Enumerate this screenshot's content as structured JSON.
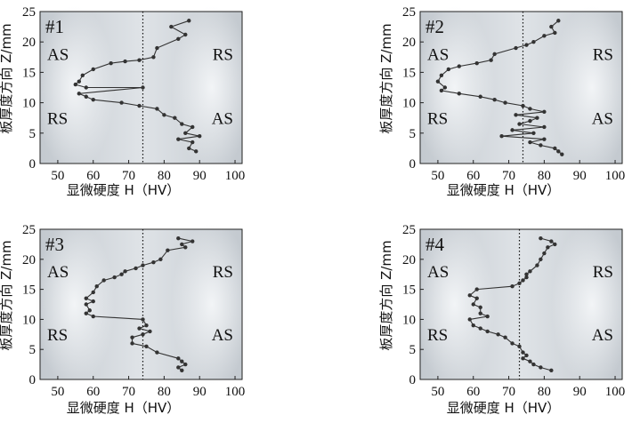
{
  "chart_data": [
    {
      "type": "line",
      "panel": "#1",
      "xlabel": "显微硬度 H（HV）",
      "ylabel": "板厚度方向 Z/mm",
      "xlim": [
        45,
        102
      ],
      "ylim": [
        0,
        25
      ],
      "xticks": [
        50,
        60,
        70,
        80,
        90,
        100
      ],
      "yticks": [
        0,
        5,
        10,
        15,
        20,
        25
      ],
      "reference_x": 74,
      "regions": {
        "top_left": "AS",
        "top_right": "RS",
        "bottom_left": "RS",
        "bottom_right": "AS"
      },
      "series": [
        {
          "points": [
            [
              87,
              23.5
            ],
            [
              82,
              22.5
            ],
            [
              86,
              21.2
            ],
            [
              84,
              20.5
            ],
            [
              78,
              19
            ],
            [
              77,
              17.5
            ],
            [
              73,
              17
            ],
            [
              69,
              16.8
            ],
            [
              65,
              16.5
            ],
            [
              60,
              15.5
            ],
            [
              57,
              14.5
            ],
            [
              56,
              13.5
            ],
            [
              55,
              13
            ],
            [
              58,
              12.5
            ],
            [
              74,
              12.5
            ],
            [
              56,
              11.5
            ],
            [
              58,
              11
            ],
            [
              60,
              10.5
            ],
            [
              68,
              10
            ],
            [
              73,
              9.5
            ],
            [
              78,
              9
            ],
            [
              80,
              8
            ],
            [
              83,
              7.5
            ],
            [
              85,
              6.5
            ],
            [
              88,
              6
            ],
            [
              86,
              5
            ],
            [
              90,
              4.5
            ],
            [
              84,
              4
            ],
            [
              88,
              3.5
            ],
            [
              87,
              2.5
            ],
            [
              89,
              2
            ]
          ]
        }
      ]
    },
    {
      "type": "line",
      "panel": "#2",
      "xlabel": "显微硬度 H（HV）",
      "ylabel": "板厚度方向 Z/mm",
      "xlim": [
        45,
        102
      ],
      "ylim": [
        0,
        25
      ],
      "xticks": [
        50,
        60,
        70,
        80,
        90,
        100
      ],
      "yticks": [
        0,
        5,
        10,
        15,
        20,
        25
      ],
      "reference_x": 74,
      "regions": {
        "top_left": "AS",
        "top_right": "RS",
        "bottom_left": "RS",
        "bottom_right": "AS"
      },
      "series": [
        {
          "points": [
            [
              84,
              23.5
            ],
            [
              82,
              22.5
            ],
            [
              83,
              21.5
            ],
            [
              80,
              21
            ],
            [
              77,
              20
            ],
            [
              75,
              19.5
            ],
            [
              72,
              19
            ],
            [
              66,
              18
            ],
            [
              65,
              17
            ],
            [
              61,
              16.5
            ],
            [
              56,
              16
            ],
            [
              53,
              15.5
            ],
            [
              51,
              14.5
            ],
            [
              50,
              13.5
            ],
            [
              52,
              12.5
            ],
            [
              51,
              12
            ],
            [
              56,
              11.5
            ],
            [
              62,
              11
            ],
            [
              66,
              10.5
            ],
            [
              69,
              10
            ],
            [
              74,
              9.5
            ],
            [
              76,
              9
            ],
            [
              80,
              8.5
            ],
            [
              72,
              8
            ],
            [
              78,
              7.5
            ],
            [
              76,
              7
            ],
            [
              73,
              6.5
            ],
            [
              80,
              6
            ],
            [
              71,
              5.5
            ],
            [
              77,
              5
            ],
            [
              68,
              4.5
            ],
            [
              80,
              4
            ],
            [
              76,
              3.5
            ],
            [
              79,
              3
            ],
            [
              83,
              2.5
            ],
            [
              84,
              2
            ],
            [
              85,
              1.5
            ]
          ]
        }
      ]
    },
    {
      "type": "line",
      "panel": "#3",
      "xlabel": "显微硬度 H（HV）",
      "ylabel": "板厚度方向 Z/mm",
      "xlim": [
        45,
        102
      ],
      "ylim": [
        0,
        25
      ],
      "xticks": [
        50,
        60,
        70,
        80,
        90,
        100
      ],
      "yticks": [
        0,
        5,
        10,
        15,
        20,
        25
      ],
      "reference_x": 74,
      "regions": {
        "top_left": "AS",
        "top_right": "RS",
        "bottom_left": "RS",
        "bottom_right": "AS"
      },
      "series": [
        {
          "points": [
            [
              84,
              23.5
            ],
            [
              88,
              23
            ],
            [
              85,
              22.5
            ],
            [
              86,
              22
            ],
            [
              81,
              21.5
            ],
            [
              79,
              20
            ],
            [
              77,
              19.5
            ],
            [
              74,
              19
            ],
            [
              72,
              18.5
            ],
            [
              69,
              18
            ],
            [
              68,
              17.5
            ],
            [
              66,
              17
            ],
            [
              63,
              16.5
            ],
            [
              61,
              15.5
            ],
            [
              60,
              14.5
            ],
            [
              58,
              13.5
            ],
            [
              60,
              13
            ],
            [
              58,
              12.5
            ],
            [
              59,
              11.5
            ],
            [
              58,
              11
            ],
            [
              60,
              10.5
            ],
            [
              74,
              10
            ],
            [
              75,
              9
            ],
            [
              73,
              8.5
            ],
            [
              76,
              8
            ],
            [
              74,
              7.5
            ],
            [
              71,
              7
            ],
            [
              71,
              6
            ],
            [
              75,
              5.5
            ],
            [
              78,
              4.5
            ],
            [
              84,
              3.5
            ],
            [
              85,
              3
            ],
            [
              86,
              2.5
            ],
            [
              84,
              2
            ],
            [
              85,
              1.5
            ]
          ]
        }
      ]
    },
    {
      "type": "line",
      "panel": "#4",
      "xlabel": "显微硬度 H（HV）",
      "ylabel": "板厚度方向 Z/mm",
      "xlim": [
        45,
        102
      ],
      "ylim": [
        0,
        25
      ],
      "xticks": [
        50,
        60,
        70,
        80,
        90,
        100
      ],
      "yticks": [
        0,
        5,
        10,
        15,
        20,
        25
      ],
      "reference_x": 73,
      "regions": {
        "top_left": "AS",
        "top_right": "RS",
        "bottom_left": "RS",
        "bottom_right": "AS"
      },
      "series": [
        {
          "points": [
            [
              79,
              23.5
            ],
            [
              82,
              23
            ],
            [
              83,
              22.5
            ],
            [
              81,
              22
            ],
            [
              80,
              21
            ],
            [
              79,
              20
            ],
            [
              78,
              19
            ],
            [
              76,
              18
            ],
            [
              75,
              17.5
            ],
            [
              75,
              17
            ],
            [
              74,
              16.5
            ],
            [
              73,
              16
            ],
            [
              71,
              15.5
            ],
            [
              61,
              15
            ],
            [
              59,
              14
            ],
            [
              61,
              13.5
            ],
            [
              60,
              12.5
            ],
            [
              62,
              12
            ],
            [
              62,
              11
            ],
            [
              64,
              10.5
            ],
            [
              59,
              10
            ],
            [
              60,
              9
            ],
            [
              62,
              8.5
            ],
            [
              64,
              8
            ],
            [
              67,
              7.5
            ],
            [
              69,
              7
            ],
            [
              71,
              6
            ],
            [
              73,
              5.5
            ],
            [
              74,
              4.5
            ],
            [
              75,
              4
            ],
            [
              74,
              3.5
            ],
            [
              76,
              3
            ],
            [
              77,
              2.5
            ],
            [
              79,
              2
            ],
            [
              82,
              1.5
            ]
          ]
        }
      ]
    }
  ]
}
